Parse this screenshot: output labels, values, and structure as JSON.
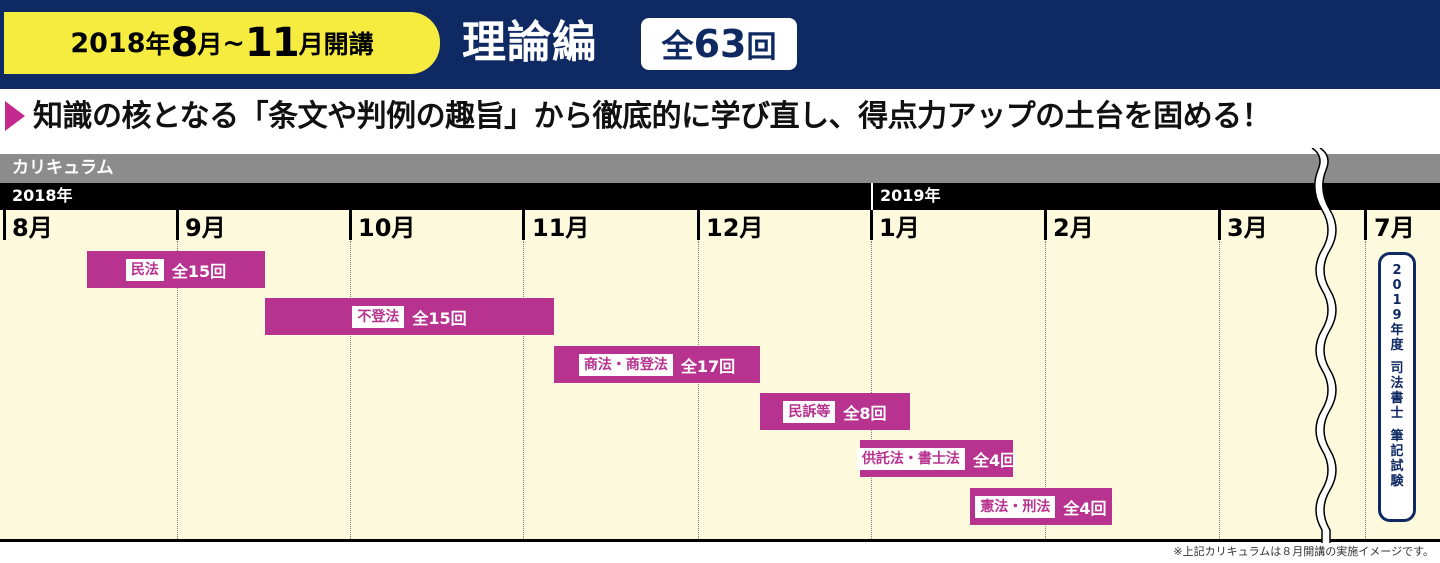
{
  "header": {
    "year": "2018",
    "nen": "年",
    "start_month": "8",
    "tsuki": "月",
    "tilde": "~",
    "end_month": "11",
    "kaiko": "月開講",
    "series_title": "理論編",
    "total_zen": "全",
    "total_num": "63",
    "total_kai": "回"
  },
  "tagline": "知識の核となる「条文や判例の趣旨」から徹底的に学び直し、得点力アップの土台を固める！",
  "curriculum": {
    "label": "カリキュラム",
    "years": [
      "2018年",
      "2019年"
    ],
    "months": [
      "8月",
      "9月",
      "10月",
      "11月",
      "12月",
      "1月",
      "2月",
      "3月",
      "7月"
    ],
    "courses": [
      {
        "subject": "民法",
        "sessions": "全15回"
      },
      {
        "subject": "不登法",
        "sessions": "全15回"
      },
      {
        "subject": "商法・商登法",
        "sessions": "全17回"
      },
      {
        "subject": "民訴等",
        "sessions": "全8回"
      },
      {
        "subject": "供託法・書士法",
        "sessions": "全4回"
      },
      {
        "subject": "憲法・刑法",
        "sessions": "全4回"
      }
    ],
    "exam_chars": [
      "2",
      "0",
      "1",
      "9",
      "年",
      "度",
      "",
      "司",
      "法",
      "書",
      "士",
      "",
      "筆",
      "記",
      "試",
      "験"
    ]
  },
  "colors": {
    "navy": "#0f2a63",
    "yellow": "#f5ec3f",
    "magenta": "#b7338f",
    "cream": "#fdf9dc"
  },
  "footnote": "※上記カリキュラムは８月開講の実施イメージです。"
}
